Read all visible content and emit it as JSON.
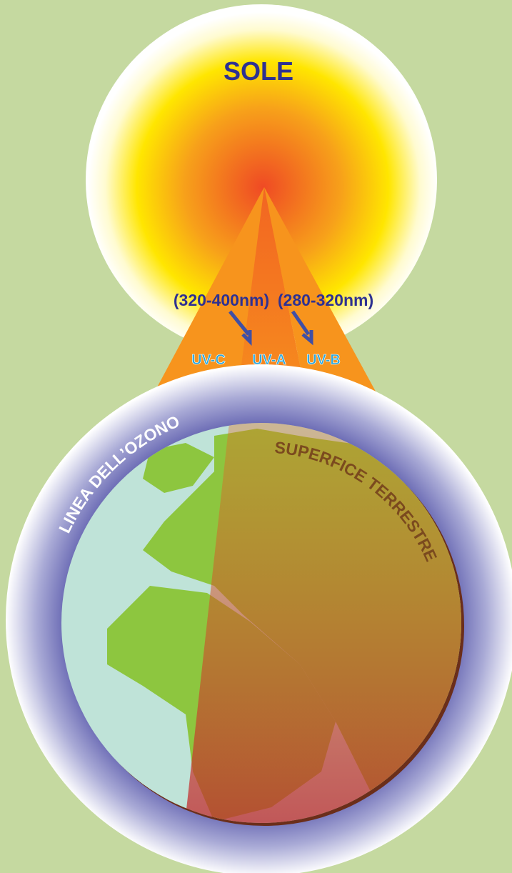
{
  "sun": {
    "label": "SOLE"
  },
  "wavelengths": {
    "uva_range": "(320-400nm)",
    "uvb_range": "(280-320nm)"
  },
  "rays": {
    "uvc": "UV-C",
    "uva": "UV-A",
    "uvb": "UV-B"
  },
  "earth": {
    "ozone_label": "LINEA DELL’OZONO",
    "surface_label": "SUPERFICE TERRESTRE"
  }
}
